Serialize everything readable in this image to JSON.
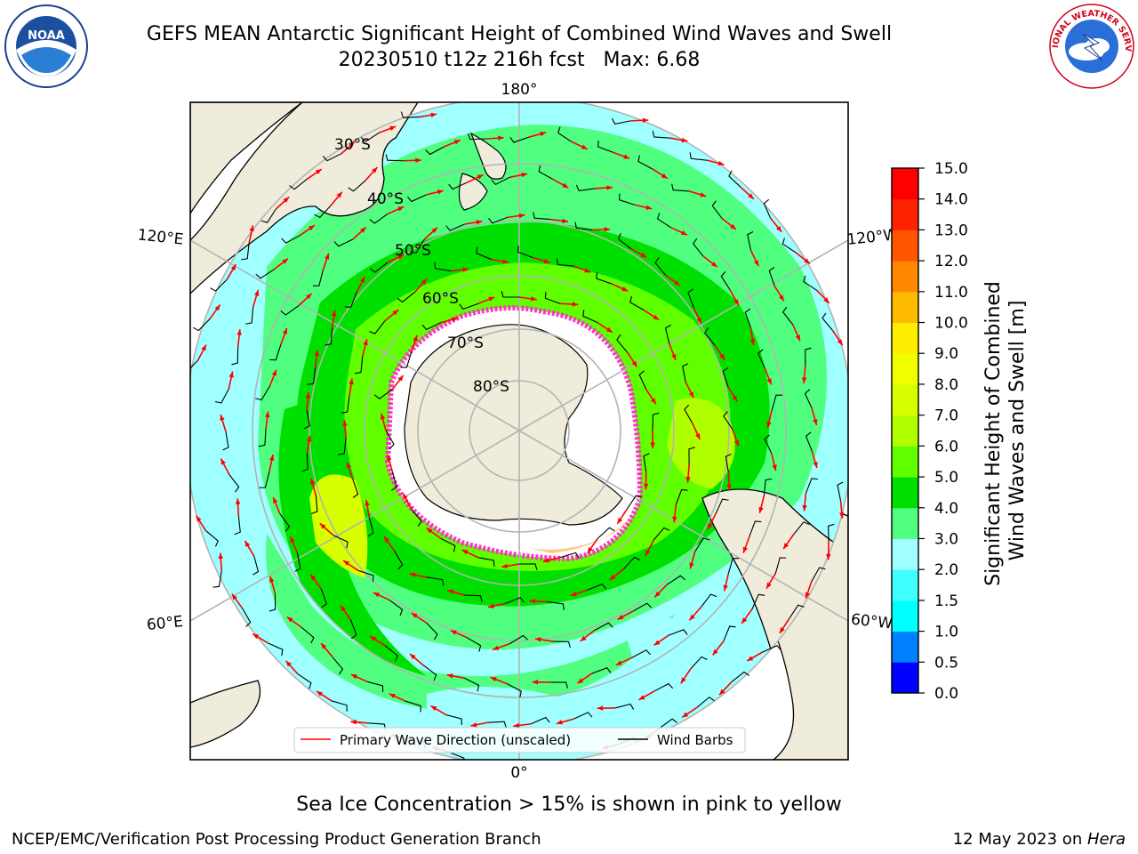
{
  "title": {
    "line1": "GEFS MEAN Antarctic Significant Height of Combined Wind Waves and Swell",
    "line2": "20230510 t12z 216h fcst   Max: 6.68"
  },
  "logos": {
    "left": "NOAA",
    "right": "NATIONAL WEATHER SERVICE"
  },
  "map": {
    "projection": "south-polar-stereographic",
    "lon_labels": [
      "180°",
      "120°E",
      "120°W",
      "60°E",
      "60°W",
      "0°"
    ],
    "lat_labels": [
      "30°S",
      "40°S",
      "50°S",
      "60°S",
      "70°S",
      "80°S"
    ],
    "legend": {
      "wave": "Primary Wave Direction (unscaled)",
      "wind": "Wind Barbs"
    },
    "colors": {
      "land": "#efecdc",
      "ice": "#ffffff",
      "ice_edge": "#ff33cc",
      "arrow": "#ff0000",
      "barb": "#000000",
      "grid": "#b3b3b3"
    }
  },
  "colorbar": {
    "label_line1": "Significant Height of Combined",
    "label_line2": "Wind Waves and Swell [m]",
    "ticks": [
      "0.0",
      "0.5",
      "1.0",
      "1.5",
      "2.0",
      "3.0",
      "4.0",
      "5.0",
      "6.0",
      "7.0",
      "8.0",
      "9.0",
      "10.0",
      "11.0",
      "12.0",
      "13.0",
      "14.0",
      "15.0"
    ],
    "colors": [
      "#0000ff",
      "#0080ff",
      "#00ffff",
      "#40ffff",
      "#a0ffff",
      "#50ff80",
      "#00e000",
      "#60ff00",
      "#b0ff00",
      "#d8ff00",
      "#f0ff00",
      "#ffee00",
      "#ffbb00",
      "#ff8800",
      "#ff5500",
      "#ff2200",
      "#ff0000"
    ]
  },
  "caption": "Sea Ice Concentration > 15% is shown in pink to yellow",
  "footer": {
    "left": "NCEP/EMC/Verification Post Processing Product Generation Branch",
    "right_date": "12 May 2023 on ",
    "right_host": "Hera"
  }
}
